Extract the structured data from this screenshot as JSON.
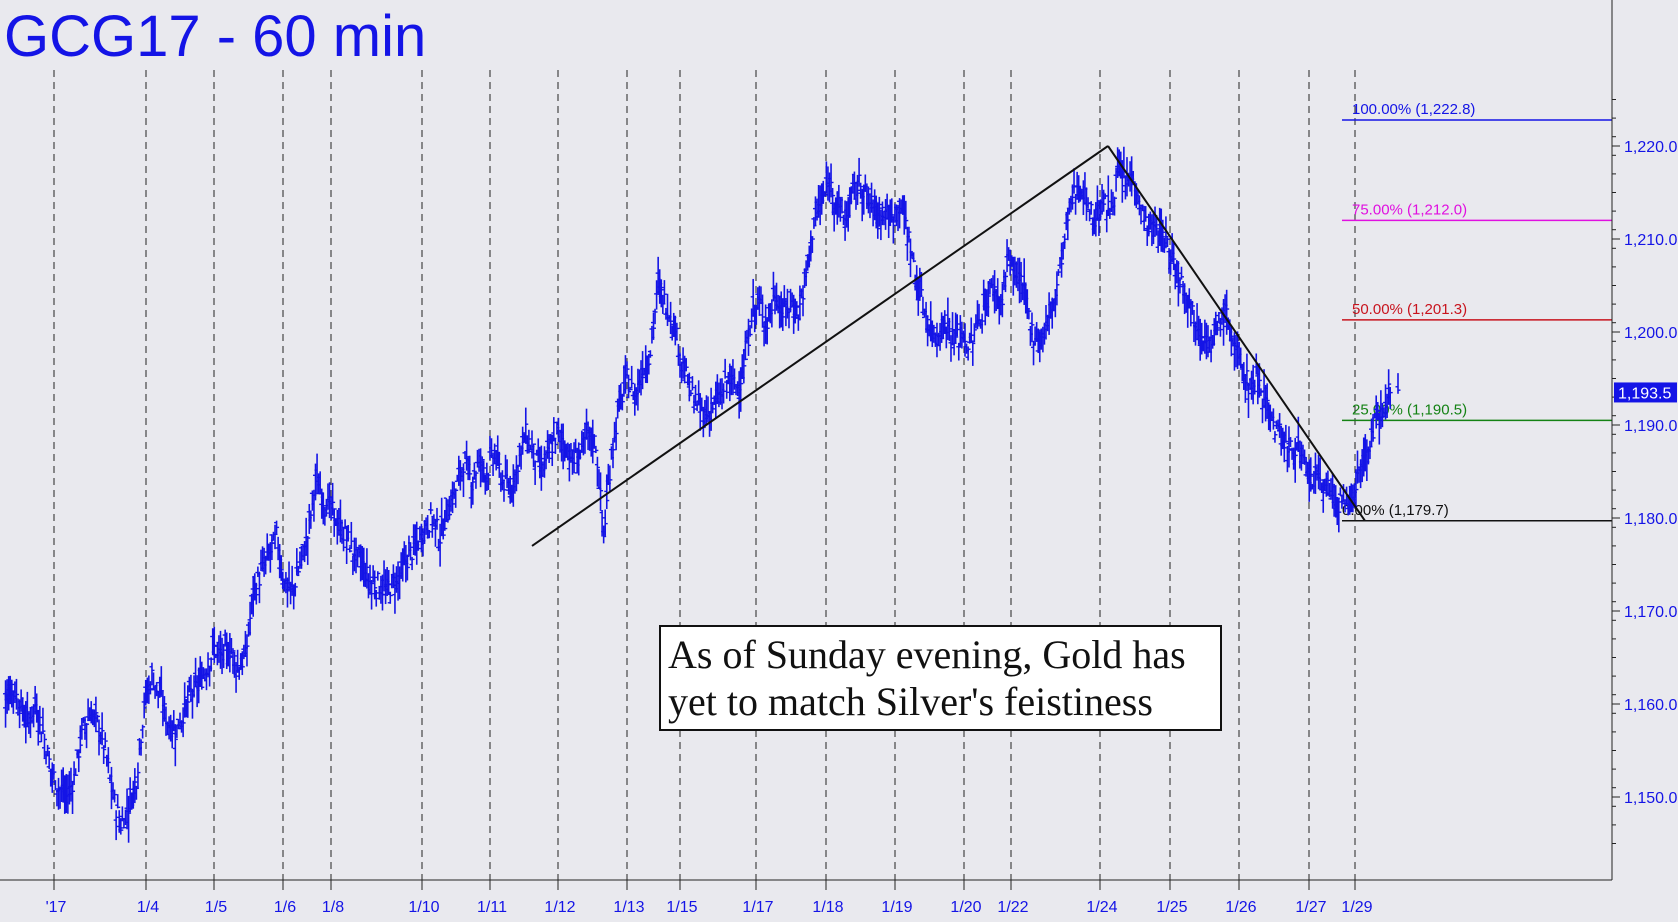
{
  "chart_data": {
    "type": "ohlc",
    "title": "GCG17 - 60 min",
    "title_color": "#1414e6",
    "bar_color": "#1414e6",
    "background": "#e9e9ee",
    "grid": "vertical dashed at session starts",
    "ylim": [
      1140,
      1228
    ],
    "y_ticks": [
      1150,
      1160,
      1170,
      1180,
      1190,
      1200,
      1210,
      1220
    ],
    "y_tick_labels": [
      "1,150.0",
      "1,160.0",
      "1,170.0",
      "1,180.0",
      "1,190.0",
      "1,200.0",
      "1,210.0",
      "1,220.0"
    ],
    "last_price": 1193.5,
    "last_price_label": "1,193.5",
    "x_tick_labels": [
      "'17",
      "1/4",
      "1/5",
      "1/6",
      "1/8",
      "1/10",
      "1/11",
      "1/12",
      "1/13",
      "1/15",
      "1/17",
      "1/18",
      "1/19",
      "1/20",
      "1/22",
      "1/24",
      "1/25",
      "1/26",
      "1/27",
      "1/29"
    ],
    "approx_closes": [
      1161,
      1162,
      1160,
      1158,
      1160,
      1157,
      1153,
      1151,
      1150,
      1152,
      1157,
      1159,
      1158,
      1155,
      1150,
      1147,
      1149,
      1152,
      1160,
      1163,
      1161,
      1158,
      1157,
      1159,
      1161,
      1162,
      1164,
      1166,
      1165,
      1166,
      1164,
      1165,
      1172,
      1174,
      1176,
      1178,
      1173,
      1172,
      1175,
      1178,
      1184,
      1182,
      1181,
      1179,
      1178,
      1176,
      1175,
      1173,
      1173,
      1172,
      1173,
      1174,
      1176,
      1177,
      1179,
      1180,
      1178,
      1181,
      1183,
      1186,
      1184,
      1186,
      1185,
      1187,
      1184,
      1183,
      1186,
      1189,
      1187,
      1185,
      1187,
      1189,
      1188,
      1186,
      1187,
      1189,
      1188,
      1178,
      1187,
      1192,
      1195,
      1193,
      1196,
      1198,
      1205,
      1203,
      1201,
      1197,
      1194,
      1192,
      1191,
      1192,
      1193,
      1195,
      1194,
      1196,
      1202,
      1203,
      1201,
      1204,
      1202,
      1203,
      1202,
      1206,
      1212,
      1214,
      1216,
      1214,
      1212,
      1215,
      1216,
      1214,
      1213,
      1213,
      1212,
      1214,
      1211,
      1206,
      1203,
      1200,
      1200,
      1201,
      1199,
      1200,
      1198,
      1201,
      1203,
      1205,
      1203,
      1208,
      1206,
      1204,
      1200,
      1199,
      1201,
      1204,
      1209,
      1214,
      1216,
      1214,
      1212,
      1214,
      1213,
      1217,
      1216,
      1217,
      1213,
      1211,
      1211,
      1210,
      1208,
      1206,
      1204,
      1201,
      1200,
      1198,
      1201,
      1202,
      1198,
      1196,
      1194,
      1195,
      1193,
      1190,
      1189,
      1187,
      1188,
      1185,
      1184,
      1184,
      1183,
      1182,
      1181,
      1182,
      1185,
      1187,
      1190,
      1192,
      1194,
      1193.5
    ]
  },
  "fib_levels": [
    {
      "pct": 100,
      "value": 1222.8,
      "label": "100.00% (1,222.8)",
      "color": "#1414e6"
    },
    {
      "pct": 75,
      "value": 1212.0,
      "label": "75.00% (1,212.0)",
      "color": "#e010e0"
    },
    {
      "pct": 50,
      "value": 1201.3,
      "label": "50.00% (1,201.3)",
      "color": "#c8141e"
    },
    {
      "pct": 25,
      "value": 1190.5,
      "label": "25.00% (1,190.5)",
      "color": "#148214"
    },
    {
      "pct": 0,
      "value": 1179.7,
      "label": "0.00% (1,179.7)",
      "color": "#111111"
    }
  ],
  "trend_points": [
    {
      "x_label": "1/11",
      "value": 1177
    },
    {
      "x_label": "1/24",
      "value": 1220
    },
    {
      "x_label": "1/27",
      "value": 1179.7
    }
  ],
  "annotation": {
    "line1": "As of Sunday evening, Gold has",
    "line2": "yet to match Silver's feistiness"
  }
}
